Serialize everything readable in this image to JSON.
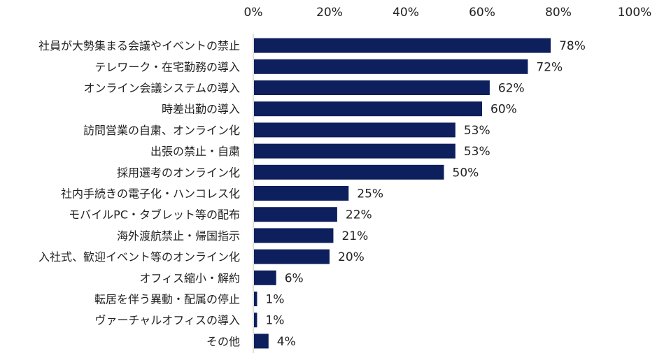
{
  "chart_data": {
    "type": "bar",
    "orientation": "horizontal",
    "title": "",
    "xlabel": "",
    "ylabel": "",
    "xlim": [
      0,
      100
    ],
    "x_ticks": [
      "0%",
      "20%",
      "40%",
      "60%",
      "80%",
      "100%"
    ],
    "x_tick_values": [
      0,
      20,
      40,
      60,
      80,
      100
    ],
    "x_axis_position": "top",
    "grid": false,
    "legend": "none",
    "bar_color": "#0d1f5c",
    "categories": [
      "社員が大勢集まる会議やイベントの禁止",
      "テレワーク・在宅勤務の導入",
      "オンライン会議システムの導入",
      "時差出勤の導入",
      "訪問営業の自粛、オンライン化",
      "出張の禁止・自粛",
      "採用選考のオンライン化",
      "社内手続きの電子化・ハンコレス化",
      "モバイルPC・タブレット等の配布",
      "海外渡航禁止・帰国指示",
      "入社式、歓迎イベント等のオンライン化",
      "オフィス縮小・解約",
      "転居を伴う異動・配属の停止",
      "ヴァーチャルオフィスの導入",
      "その他"
    ],
    "values": [
      78,
      72,
      62,
      60,
      53,
      53,
      50,
      25,
      22,
      21,
      20,
      6,
      1,
      1,
      4
    ],
    "value_labels": [
      "78%",
      "72%",
      "62%",
      "60%",
      "53%",
      "53%",
      "50%",
      "25%",
      "22%",
      "21%",
      "20%",
      "6%",
      "1%",
      "1%",
      "4%"
    ]
  }
}
